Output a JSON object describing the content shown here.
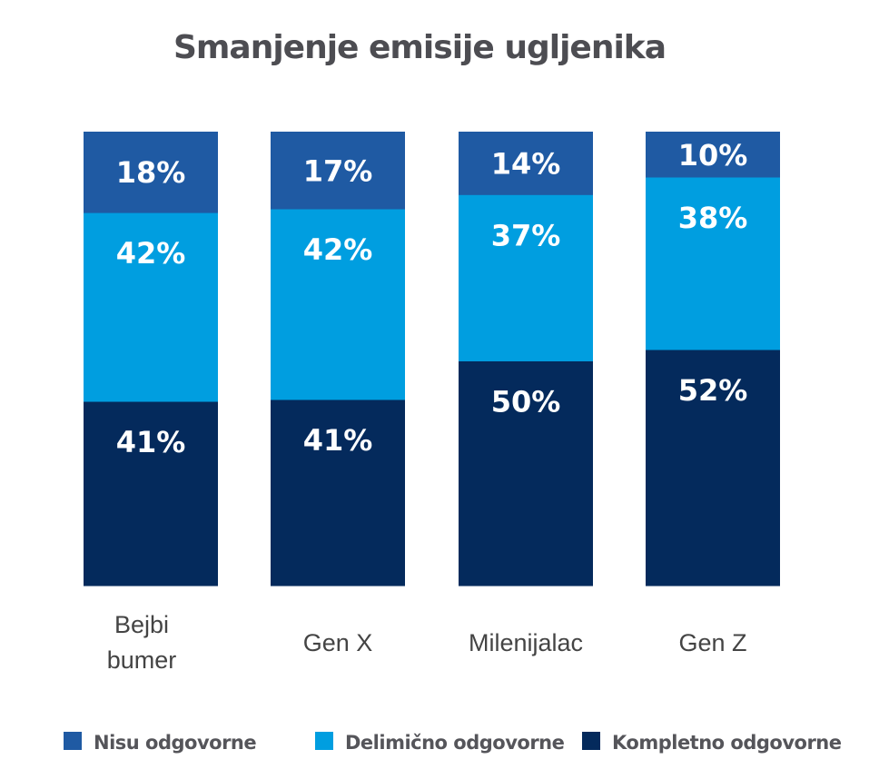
{
  "chart_data": {
    "type": "bar",
    "stacked": true,
    "title": "Smanjenje emisije ugljenika",
    "categories": [
      [
        "Bejbi",
        "bumer"
      ],
      [
        "Gen X"
      ],
      [
        "Milenijalac"
      ],
      [
        "Gen Z"
      ]
    ],
    "series": [
      {
        "name": "Kompletno odgovorne",
        "color": "#042a5c",
        "values": [
          41,
          41,
          50,
          52
        ],
        "labels": [
          "41%",
          "41%",
          "50%",
          "52%"
        ]
      },
      {
        "name": "Delimično odgovorne",
        "color": "#009ee0",
        "values": [
          42,
          42,
          37,
          38
        ],
        "labels": [
          "42%",
          "42%",
          "37%",
          "38%"
        ]
      },
      {
        "name": "Nisu odgovorne",
        "color": "#1f5aa3",
        "values": [
          18,
          17,
          14,
          10
        ],
        "labels": [
          "18%",
          "17%",
          "14%",
          "10%"
        ]
      }
    ],
    "legend": {
      "position": "bottom",
      "order": [
        "Nisu odgovorne",
        "Delimično odgovorne",
        "Kompletno odgovorne"
      ]
    },
    "grid": false
  }
}
